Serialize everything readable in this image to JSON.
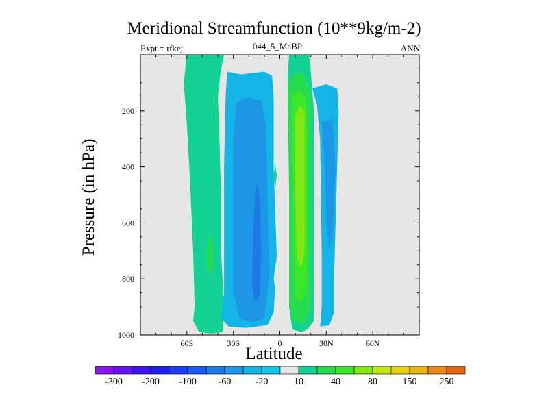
{
  "chart_data": {
    "type": "contour",
    "title": "Meridional Streamfunction (10**9kg/m-2)",
    "subtitle_left": "Expt = tfkej",
    "subtitle_center": "044_5_MaBP",
    "subtitle_right": "ANN",
    "xlabel": "Latitude",
    "ylabel": "Pressure (in hPa)",
    "xlim": [
      -90,
      90
    ],
    "ylim": [
      1000,
      0
    ],
    "x_ticks": [
      {
        "value": -60,
        "label": "60S"
      },
      {
        "value": -30,
        "label": "30S"
      },
      {
        "value": 0,
        "label": "0"
      },
      {
        "value": 30,
        "label": "30N"
      },
      {
        "value": 60,
        "label": "60N"
      }
    ],
    "y_ticks": [
      {
        "value": 200,
        "label": "200"
      },
      {
        "value": 400,
        "label": "400"
      },
      {
        "value": 600,
        "label": "600"
      },
      {
        "value": 800,
        "label": "800"
      },
      {
        "value": 1000,
        "label": "1000"
      }
    ],
    "background_color": "#e6e6e6",
    "colorbar": {
      "levels": [
        -300,
        -250,
        -200,
        -150,
        -100,
        -80,
        -60,
        -40,
        -20,
        -10,
        10,
        20,
        40,
        60,
        80,
        100,
        150,
        200,
        250
      ],
      "labels": [
        "-300",
        "-200",
        "-100",
        "-60",
        "-20",
        "10",
        "40",
        "80",
        "150",
        "250"
      ],
      "colors": [
        "#8c14f0",
        "#6414f0",
        "#3c14f0",
        "#1e1ef0",
        "#1e3cf0",
        "#1e5af0",
        "#1e78e6",
        "#1e96e6",
        "#14b4e6",
        "#14c8e6",
        "#e6e6e6",
        "#14d296",
        "#28dc50",
        "#3ce628",
        "#82e614",
        "#c8e614",
        "#e6d214",
        "#e6b414",
        "#e68c14",
        "#e66414"
      ]
    },
    "regions": [
      {
        "band": "10 to 20",
        "color": "#14d296",
        "points": [
          [
            -36,
            0
          ],
          [
            -38,
            50
          ],
          [
            -40,
            150
          ],
          [
            -39,
            300
          ],
          [
            -38,
            500
          ],
          [
            -38,
            700
          ],
          [
            -36,
            900
          ],
          [
            -37,
            990
          ],
          [
            -44,
            995
          ],
          [
            -52,
            990
          ],
          [
            -56,
            950
          ],
          [
            -55,
            900
          ],
          [
            -56,
            700
          ],
          [
            -58,
            450
          ],
          [
            -60,
            250
          ],
          [
            -62,
            100
          ],
          [
            -60,
            0
          ]
        ]
      },
      {
        "band": "20 to 40",
        "color": "#28dc50",
        "points": [
          [
            -45,
            640
          ],
          [
            -43,
            690
          ],
          [
            -43,
            750
          ],
          [
            -45,
            790
          ],
          [
            -47,
            750
          ],
          [
            -47,
            690
          ]
        ]
      },
      {
        "band": "-20 to -10",
        "color": "#14b4e6",
        "points": [
          [
            -34,
            60
          ],
          [
            -25,
            70
          ],
          [
            -18,
            65
          ],
          [
            -10,
            60
          ],
          [
            -5,
            75
          ],
          [
            -4,
            150
          ],
          [
            -4,
            400
          ],
          [
            -2,
            720
          ],
          [
            -4,
            800
          ],
          [
            -3,
            830
          ],
          [
            -4,
            920
          ],
          [
            -8,
            965
          ],
          [
            -22,
            975
          ],
          [
            -33,
            970
          ],
          [
            -38,
            940
          ],
          [
            -36,
            850
          ],
          [
            -36,
            400
          ],
          [
            -35,
            150
          ]
        ]
      },
      {
        "band": "-40 to -20",
        "color": "#1e96e6",
        "points": [
          [
            -30,
            300
          ],
          [
            -28,
            170
          ],
          [
            -20,
            150
          ],
          [
            -12,
            165
          ],
          [
            -9,
            250
          ],
          [
            -8,
            500
          ],
          [
            -7,
            800
          ],
          [
            -10,
            940
          ],
          [
            -18,
            955
          ],
          [
            -26,
            940
          ],
          [
            -30,
            850
          ],
          [
            -30,
            600
          ]
        ]
      },
      {
        "band": "-60 to -40",
        "color": "#1e78e6",
        "points": [
          [
            -15,
            460
          ],
          [
            -13,
            500
          ],
          [
            -12,
            700
          ],
          [
            -13,
            860
          ],
          [
            -16,
            880
          ],
          [
            -18,
            820
          ],
          [
            -17,
            600
          ],
          [
            -16,
            500
          ]
        ]
      },
      {
        "band": "-20 to -10",
        "color": "#14b4e6",
        "points": [
          [
            21,
            120
          ],
          [
            30,
            105
          ],
          [
            37,
            120
          ],
          [
            38,
            200
          ],
          [
            37,
            400
          ],
          [
            35,
            800
          ],
          [
            35,
            920
          ],
          [
            32,
            965
          ],
          [
            26,
            970
          ],
          [
            27,
            900
          ],
          [
            27,
            700
          ],
          [
            26,
            300
          ],
          [
            24,
            180
          ]
        ]
      },
      {
        "band": "-40 to -20",
        "color": "#1e96e6",
        "points": [
          [
            27,
            240
          ],
          [
            34,
            230
          ],
          [
            36,
            400
          ],
          [
            34,
            650
          ],
          [
            32,
            700
          ],
          [
            30,
            600
          ],
          [
            29,
            400
          ]
        ]
      },
      {
        "band": "10 to 20",
        "color": "#14d296",
        "points": [
          [
            5,
            80
          ],
          [
            6,
            0
          ],
          [
            19,
            0
          ],
          [
            20,
            60
          ],
          [
            22,
            200
          ],
          [
            22,
            500
          ],
          [
            22,
            800
          ],
          [
            22,
            950
          ],
          [
            18,
            980
          ],
          [
            14,
            990
          ],
          [
            8,
            980
          ],
          [
            6,
            900
          ],
          [
            6,
            500
          ]
        ]
      },
      {
        "band": "20 to 40",
        "color": "#28dc50",
        "points": [
          [
            5,
            120
          ],
          [
            7,
            80
          ],
          [
            12,
            60
          ],
          [
            16,
            70
          ],
          [
            18,
            110
          ],
          [
            20,
            150
          ],
          [
            20,
            500
          ],
          [
            20,
            900
          ],
          [
            16,
            960
          ],
          [
            9,
            955
          ],
          [
            6,
            900
          ],
          [
            6,
            400
          ]
        ]
      },
      {
        "band": "40 to 60",
        "color": "#3ce628",
        "points": [
          [
            8,
            150
          ],
          [
            12,
            130
          ],
          [
            17,
            150
          ],
          [
            18,
            300
          ],
          [
            18,
            700
          ],
          [
            17,
            830
          ],
          [
            14,
            880
          ],
          [
            10,
            870
          ],
          [
            9,
            700
          ],
          [
            8,
            300
          ]
        ]
      },
      {
        "band": "60 to 80",
        "color": "#82e614",
        "points": [
          [
            10,
            220
          ],
          [
            13,
            180
          ],
          [
            16,
            200
          ],
          [
            16,
            400
          ],
          [
            16,
            700
          ],
          [
            14,
            760
          ],
          [
            11,
            730
          ],
          [
            10,
            500
          ]
        ]
      },
      {
        "band": "10 to 20",
        "color": "#14d296",
        "points": [
          [
            -3,
            385
          ],
          [
            -2,
            430
          ],
          [
            -3,
            480
          ],
          [
            -4,
            430
          ]
        ]
      }
    ]
  }
}
